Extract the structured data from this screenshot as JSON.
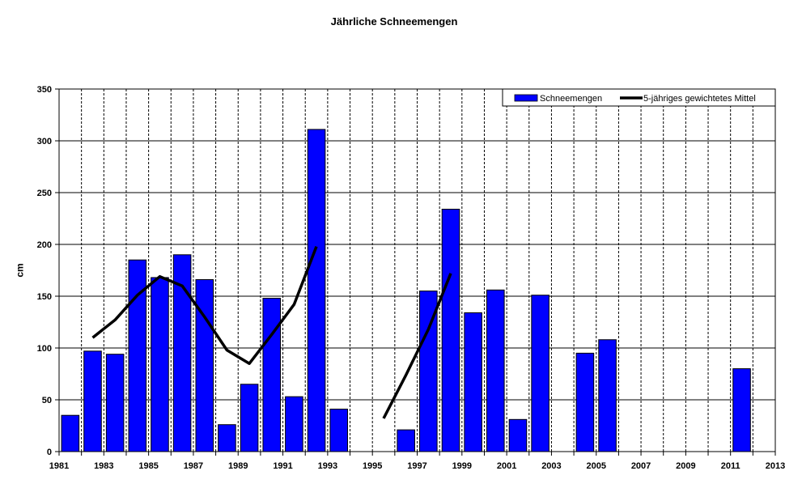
{
  "chart_data": {
    "type": "bar",
    "title": "Jährliche Schneemengen",
    "ylabel": "cm",
    "xlabel": "",
    "ylim": [
      0,
      350
    ],
    "yticks": [
      0,
      50,
      100,
      150,
      200,
      250,
      300,
      350
    ],
    "xlim": [
      1981,
      2013
    ],
    "xtick_labels": [
      "1981",
      "1983",
      "1985",
      "1987",
      "1989",
      "1991",
      "1993",
      "1995",
      "1997",
      "1999",
      "2001",
      "2003",
      "2005",
      "2007",
      "2009",
      "2011",
      "2013"
    ],
    "grid": "on",
    "legend_position": "top-right",
    "series": [
      {
        "name": "Schneemengen",
        "type": "bar",
        "color": "#0000ff",
        "points": [
          {
            "year": 1982,
            "value": 35
          },
          {
            "year": 1983,
            "value": 97
          },
          {
            "year": 1984,
            "value": 94
          },
          {
            "year": 1985,
            "value": 185
          },
          {
            "year": 1986,
            "value": 168
          },
          {
            "year": 1987,
            "value": 190
          },
          {
            "year": 1988,
            "value": 166
          },
          {
            "year": 1989,
            "value": 26
          },
          {
            "year": 1990,
            "value": 65
          },
          {
            "year": 1991,
            "value": 148
          },
          {
            "year": 1992,
            "value": 53
          },
          {
            "year": 1993,
            "value": 311
          },
          {
            "year": 1994,
            "value": 41
          },
          {
            "year": 1997,
            "value": 21
          },
          {
            "year": 1998,
            "value": 155
          },
          {
            "year": 1999,
            "value": 234
          },
          {
            "year": 2000,
            "value": 134
          },
          {
            "year": 2001,
            "value": 156
          },
          {
            "year": 2002,
            "value": 31
          },
          {
            "year": 2003,
            "value": 151
          },
          {
            "year": 2005,
            "value": 95
          },
          {
            "year": 2006,
            "value": 108
          },
          {
            "year": 2012,
            "value": 80
          }
        ]
      },
      {
        "name": "5-jähriges gewichtetes Mittel",
        "type": "line",
        "color": "#000000",
        "segments": [
          [
            {
              "year": 1983,
              "value": 110
            },
            {
              "year": 1984,
              "value": 127
            },
            {
              "year": 1985,
              "value": 151
            },
            {
              "year": 1986,
              "value": 169
            },
            {
              "year": 1987,
              "value": 160
            },
            {
              "year": 1988,
              "value": 130
            },
            {
              "year": 1989,
              "value": 98
            },
            {
              "year": 1990,
              "value": 85
            },
            {
              "year": 1991,
              "value": 113
            },
            {
              "year": 1992,
              "value": 142
            },
            {
              "year": 1993,
              "value": 198
            }
          ],
          [
            {
              "year": 1996,
              "value": 32
            },
            {
              "year": 1997,
              "value": 74
            },
            {
              "year": 1998,
              "value": 118
            },
            {
              "year": 1999,
              "value": 172
            }
          ]
        ]
      }
    ]
  }
}
